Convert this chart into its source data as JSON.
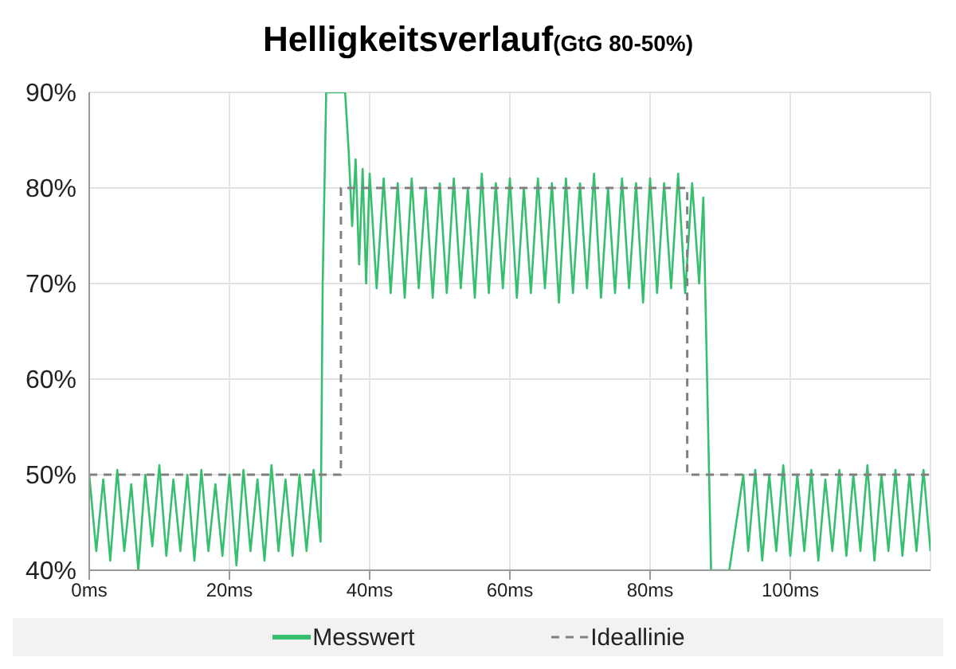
{
  "chart_data": {
    "type": "line",
    "title": "Helligkeitsverlauf",
    "subtitle": "(GtG 80-50%)",
    "xlim": [
      0,
      120
    ],
    "xticks": [
      {
        "value": 0,
        "label": "0ms"
      },
      {
        "value": 20,
        "label": "20ms"
      },
      {
        "value": 40,
        "label": "40ms"
      },
      {
        "value": 60,
        "label": "60ms"
      },
      {
        "value": 80,
        "label": "80ms"
      },
      {
        "value": 100,
        "label": "100ms"
      }
    ],
    "ylim": [
      40,
      90
    ],
    "yticks": [
      {
        "value": 40,
        "label": "40%"
      },
      {
        "value": 50,
        "label": "50%"
      },
      {
        "value": 60,
        "label": "60%"
      },
      {
        "value": 70,
        "label": "70%"
      },
      {
        "value": 80,
        "label": "80%"
      },
      {
        "value": 90,
        "label": "90%"
      }
    ],
    "grid": true,
    "legend": "bottom",
    "marker": "none",
    "series": [
      {
        "name": "Messwert",
        "color": "#35bf6e",
        "line_style": "solid",
        "x": [
          0,
          1,
          2,
          3,
          4,
          5,
          6,
          7,
          8,
          9,
          10,
          11,
          12,
          13,
          14,
          15,
          16,
          17,
          18,
          19,
          20,
          21,
          22,
          23,
          24,
          25,
          26,
          27,
          28,
          29,
          30,
          31,
          32,
          33,
          33.3,
          33.8,
          36.5,
          37,
          37.5,
          38,
          38.5,
          39,
          39.5,
          40,
          41,
          42,
          43,
          44,
          45,
          46,
          47,
          48,
          49,
          50,
          51,
          52,
          53,
          54,
          55,
          56,
          57,
          58,
          59,
          60,
          61,
          62,
          63,
          64,
          65,
          66,
          67,
          68,
          69,
          70,
          71,
          72,
          73,
          74,
          75,
          76,
          77,
          78,
          79,
          80,
          81,
          82,
          83,
          84,
          85,
          86,
          87,
          87.6,
          88.7,
          91.3,
          93.3,
          94,
          95,
          96,
          97,
          98,
          99,
          100,
          101,
          102,
          103,
          104,
          105,
          106,
          107,
          108,
          109,
          110,
          111,
          112,
          113,
          114,
          115,
          116,
          117,
          118,
          119,
          120
        ],
        "values": [
          50,
          42,
          49.5,
          41,
          50.5,
          42,
          49,
          40,
          50,
          42.5,
          51,
          41.5,
          49.5,
          42,
          50,
          41,
          50.5,
          42,
          49,
          41.5,
          50,
          40.5,
          50.5,
          42,
          49.5,
          41,
          51,
          42,
          49.5,
          41.5,
          50,
          42,
          50.5,
          43,
          70,
          90,
          90,
          84,
          76,
          83,
          72,
          82,
          70,
          81.5,
          69.5,
          81,
          69,
          80.5,
          68.5,
          81,
          69.5,
          80,
          68.5,
          80.5,
          69,
          81,
          69.5,
          80,
          68.5,
          81.5,
          69,
          80.5,
          69.5,
          81,
          68.5,
          80,
          69,
          81,
          69.5,
          80.5,
          68,
          81,
          69,
          80.5,
          69.5,
          81.5,
          68.5,
          80,
          69,
          81,
          69.5,
          80.5,
          68,
          81,
          69,
          80.5,
          69.5,
          81.5,
          69,
          80.5,
          70,
          79,
          40,
          40,
          50,
          42,
          50.5,
          41,
          50,
          42,
          51,
          41.5,
          50,
          42,
          50.5,
          41,
          49.5,
          42,
          50.5,
          41.5,
          50,
          42,
          51,
          41,
          50,
          42,
          50.5,
          41.5,
          50,
          42,
          50.5,
          42
        ]
      },
      {
        "name": "Ideallinie",
        "color": "#808080",
        "line_style": "dashed",
        "x": [
          0,
          35.9,
          35.9,
          85.3,
          85.3,
          120
        ],
        "values": [
          50,
          50,
          80,
          80,
          50,
          50
        ]
      }
    ]
  }
}
